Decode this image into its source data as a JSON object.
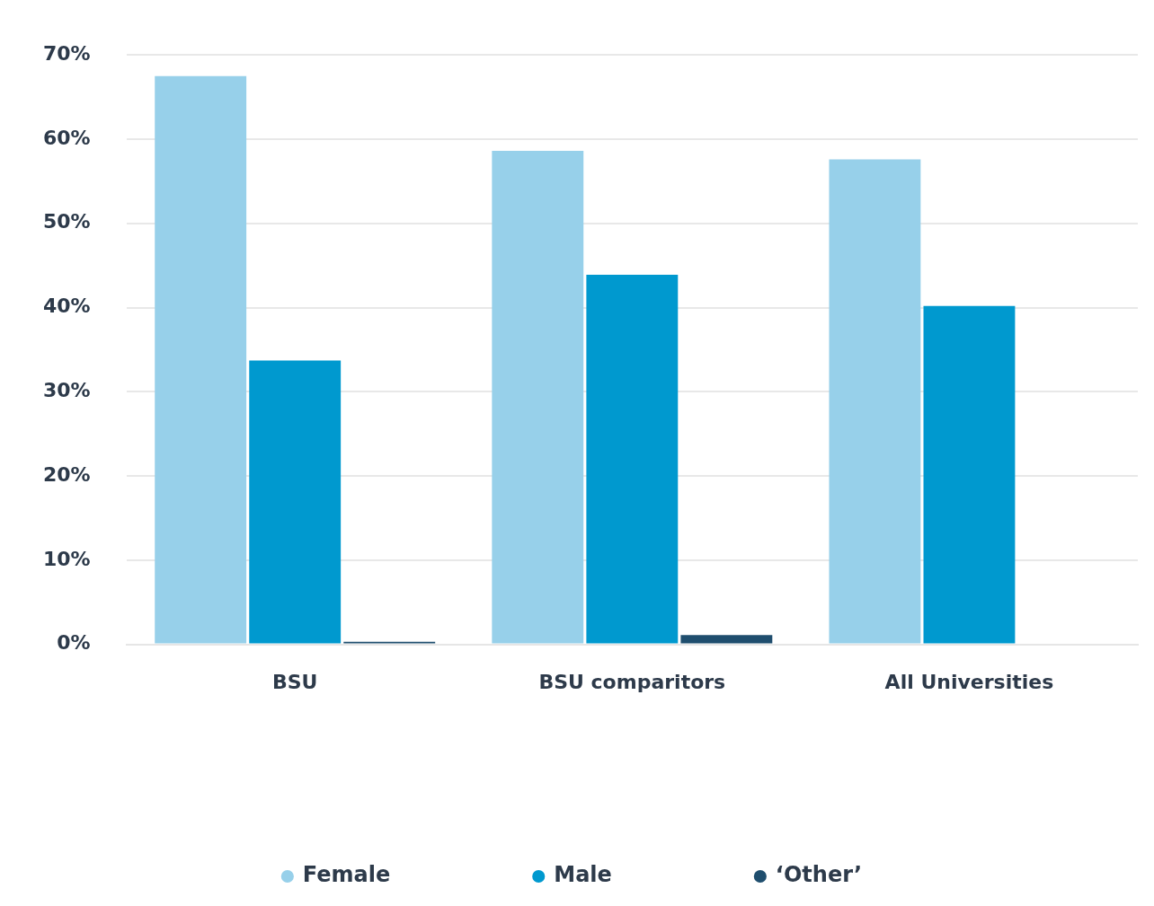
{
  "chart_data": {
    "type": "bar",
    "categories": [
      "BSU",
      "BSU comparitors",
      "All Universities"
    ],
    "series": [
      {
        "name": "Female",
        "color": "#97d0ea",
        "values": [
          67.5,
          58.6,
          57.6
        ]
      },
      {
        "name": "Male",
        "color": "#0099cf",
        "values": [
          33.7,
          43.9,
          40.2
        ]
      },
      {
        "name": "‘Other’",
        "color": "#1f4e6e",
        "values": [
          0.3,
          1.1,
          null
        ]
      }
    ],
    "ylim": [
      0,
      70
    ],
    "yticks": [
      {
        "value": 0,
        "label": "0%"
      },
      {
        "value": 10,
        "label": "10%"
      },
      {
        "value": 20,
        "label": "20%"
      },
      {
        "value": 30,
        "label": "30%"
      },
      {
        "value": 40,
        "label": "40%"
      },
      {
        "value": 50,
        "label": "50%"
      },
      {
        "value": 60,
        "label": "60%"
      },
      {
        "value": 70,
        "label": "70%"
      }
    ],
    "grid": "y",
    "legend": "bottom"
  }
}
